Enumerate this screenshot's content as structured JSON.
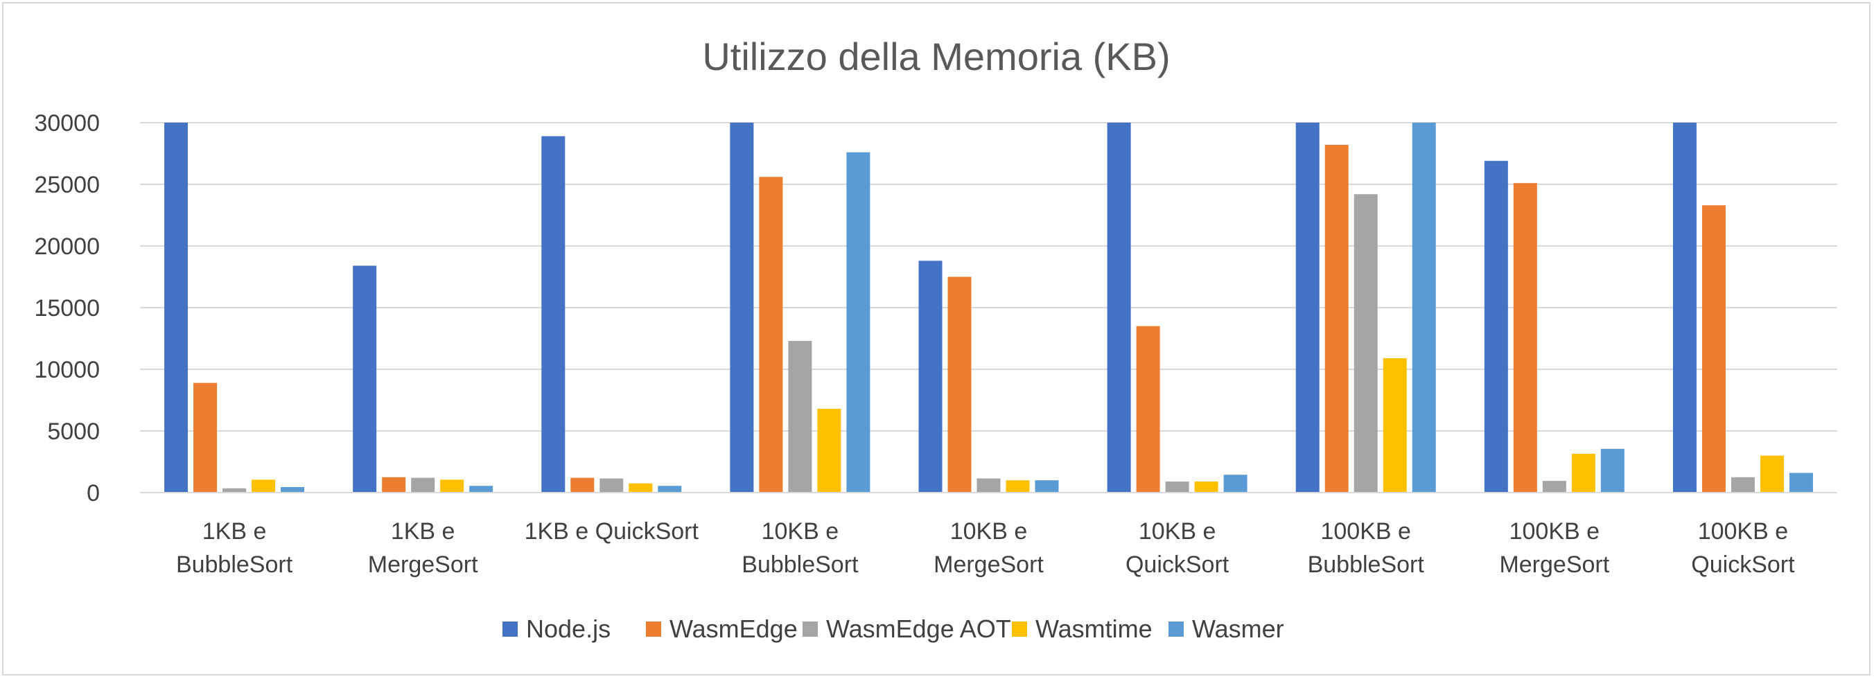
{
  "chart_data": {
    "type": "bar",
    "title": "Utilizzo della Memoria (KB)",
    "xlabel": "",
    "ylabel": "",
    "ylim": [
      0,
      30000
    ],
    "yticks": [
      0,
      5000,
      10000,
      15000,
      20000,
      25000,
      30000
    ],
    "grid": true,
    "legend_position": "bottom",
    "categories": [
      [
        "1KB e",
        "BubbleSort"
      ],
      [
        "1KB e",
        "MergeSort"
      ],
      [
        "1KB e QuickSort"
      ],
      [
        "10KB e",
        "BubbleSort"
      ],
      [
        "10KB e",
        "MergeSort"
      ],
      [
        "10KB e",
        "QuickSort"
      ],
      [
        "100KB e",
        "BubbleSort"
      ],
      [
        "100KB e",
        "MergeSort"
      ],
      [
        "100KB e",
        "QuickSort"
      ]
    ],
    "series": [
      {
        "name": "Node.js",
        "color": "#4472C4",
        "values": [
          30000,
          18400,
          28900,
          30000,
          18800,
          30000,
          30000,
          26900,
          30000
        ]
      },
      {
        "name": "WasmEdge",
        "color": "#ED7D31",
        "values": [
          8900,
          1250,
          1200,
          25600,
          17500,
          13500,
          28200,
          25100,
          23300
        ]
      },
      {
        "name": "WasmEdge AOT",
        "color": "#A5A5A5",
        "values": [
          350,
          1200,
          1150,
          12300,
          1150,
          900,
          24200,
          950,
          1250
        ]
      },
      {
        "name": "Wasmtime",
        "color": "#FFC000",
        "values": [
          1050,
          1050,
          750,
          6800,
          1000,
          900,
          10900,
          3150,
          3000
        ]
      },
      {
        "name": "Wasmer",
        "color": "#5B9BD5",
        "values": [
          450,
          550,
          550,
          27600,
          1000,
          1450,
          30000,
          3550,
          1600
        ]
      }
    ]
  }
}
